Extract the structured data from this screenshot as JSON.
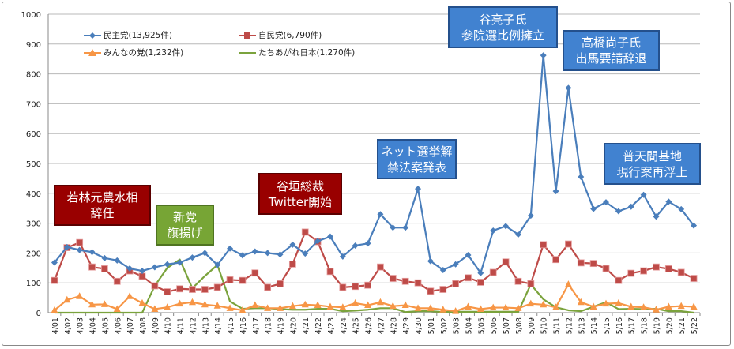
{
  "chart_data": {
    "type": "line",
    "title": "",
    "xlabel": "",
    "ylabel": "",
    "ylim": [
      0,
      1000
    ],
    "yticks": [
      0,
      100,
      200,
      300,
      400,
      500,
      600,
      700,
      800,
      900,
      1000
    ],
    "grid": true,
    "legend_placement": "top-left",
    "categories": [
      "4/01",
      "4/02",
      "4/03",
      "4/04",
      "4/05",
      "4/06",
      "4/07",
      "4/08",
      "4/09",
      "4/10",
      "4/11",
      "4/12",
      "4/13",
      "4/14",
      "4/15",
      "4/16",
      "4/17",
      "4/18",
      "4/19",
      "4/20",
      "4/21",
      "4/22",
      "4/23",
      "4/24",
      "4/25",
      "4/26",
      "4/27",
      "4/28",
      "4/29",
      "4/30",
      "5/01",
      "5/02",
      "5/03",
      "5/04",
      "5/05",
      "5/06",
      "5/07",
      "5/08",
      "5/09",
      "5/10",
      "5/11",
      "5/12",
      "5/13",
      "5/14",
      "5/15",
      "5/16",
      "5/17",
      "5/18",
      "5/19",
      "5/20",
      "5/21",
      "5/22"
    ],
    "series": [
      {
        "name": "民主党(13,925件)",
        "color": "#4a7ebb",
        "marker": "diamond",
        "values": [
          168,
          220,
          210,
          203,
          183,
          175,
          148,
          140,
          152,
          162,
          168,
          185,
          200,
          160,
          215,
          192,
          205,
          200,
          195,
          228,
          198,
          240,
          255,
          188,
          225,
          232,
          330,
          285,
          285,
          415,
          173,
          143,
          162,
          193,
          133,
          275,
          290,
          262,
          325,
          862,
          407,
          753,
          455,
          348,
          370,
          340,
          355,
          395,
          322,
          372,
          347,
          292
        ]
      },
      {
        "name": "自民党(6,790件)",
        "color": "#be4b48",
        "marker": "square",
        "values": [
          108,
          218,
          235,
          153,
          147,
          105,
          140,
          122,
          90,
          70,
          80,
          78,
          78,
          85,
          110,
          108,
          133,
          85,
          97,
          163,
          270,
          238,
          138,
          85,
          88,
          92,
          153,
          115,
          105,
          100,
          72,
          78,
          97,
          117,
          102,
          135,
          170,
          105,
          97,
          228,
          178,
          230,
          167,
          165,
          148,
          108,
          132,
          140,
          153,
          147,
          135,
          115
        ]
      },
      {
        "name": "みんなの党(1,232件)",
        "color": "#f79646",
        "marker": "triangle",
        "values": [
          8,
          43,
          55,
          27,
          28,
          12,
          55,
          32,
          12,
          18,
          30,
          35,
          27,
          23,
          15,
          8,
          25,
          15,
          15,
          22,
          27,
          25,
          20,
          18,
          32,
          25,
          35,
          22,
          25,
          15,
          15,
          10,
          5,
          20,
          12,
          17,
          17,
          15,
          30,
          27,
          18,
          95,
          35,
          20,
          30,
          32,
          20,
          18,
          10,
          20,
          22,
          20
        ]
      },
      {
        "name": "たちあがれ日本(1,270件)",
        "color": "#7ba33d",
        "marker": "none",
        "values": [
          0,
          0,
          0,
          0,
          0,
          0,
          0,
          0,
          90,
          150,
          178,
          82,
          123,
          160,
          38,
          13,
          15,
          15,
          12,
          10,
          10,
          13,
          13,
          5,
          7,
          10,
          15,
          15,
          2,
          5,
          5,
          2,
          3,
          3,
          3,
          3,
          3,
          3,
          95,
          45,
          18,
          8,
          5,
          20,
          35,
          12,
          13,
          12,
          13,
          5,
          5,
          0
        ]
      }
    ],
    "annotations": [
      {
        "text": "若林元農水相\n辞任",
        "color": "#990000"
      },
      {
        "text": "新党\n旗揚げ",
        "color": "#77a535"
      },
      {
        "text": "谷垣総裁\nTwitter開始",
        "color": "#990000"
      },
      {
        "text": "ネット選挙解\n禁法案発表",
        "color": "#4182d0"
      },
      {
        "text": "谷亮子氏\n参院選比例擁立",
        "color": "#4182d0"
      },
      {
        "text": "高橋尚子氏\n出馬要請辞退",
        "color": "#4182d0"
      },
      {
        "text": "普天間基地\n現行案再浮上",
        "color": "#4182d0"
      }
    ]
  }
}
